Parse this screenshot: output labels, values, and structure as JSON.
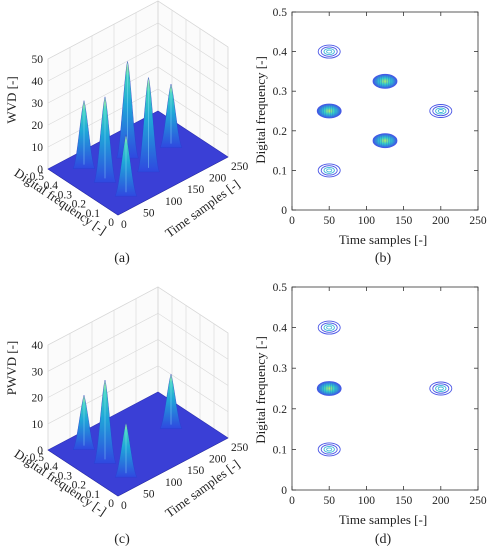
{
  "colors": {
    "floor": "#3a3fd6",
    "peak_low": "#2f48e0",
    "peak_mid": "#1fb4d8",
    "peak_high": "#b8f06a",
    "contour_outer": "#4a56e6",
    "contour_mid": "#3fb7d8",
    "contour_core": "#98e27a",
    "axis": "#333333",
    "grid": "#d8d8d8"
  },
  "chart_data": [
    {
      "id": "a",
      "panel_label": "(a)",
      "type": "surface3d",
      "zlabel": "WVD [-]",
      "xlabel": "Time samples [-]",
      "ylabel": "Digital frequency [-]",
      "xlim": [
        0,
        250
      ],
      "ylim": [
        0,
        0.5
      ],
      "zlim": [
        0,
        50
      ],
      "xticks": [
        "0",
        "50",
        "100",
        "150",
        "200",
        "250"
      ],
      "yticks": [
        "0",
        "0.1",
        "0.2",
        "0.3",
        "0.4",
        "0.5"
      ],
      "zticks": [
        "0",
        "10",
        "20",
        "30",
        "40",
        "50"
      ],
      "peaks": [
        {
          "t": 50,
          "f": 0.4,
          "z": 30
        },
        {
          "t": 125,
          "f": 0.325,
          "z": 43
        },
        {
          "t": 200,
          "f": 0.25,
          "z": 28
        },
        {
          "t": 50,
          "f": 0.25,
          "z": 38
        },
        {
          "t": 125,
          "f": 0.175,
          "z": 42
        },
        {
          "t": 50,
          "f": 0.1,
          "z": 27
        }
      ]
    },
    {
      "id": "b",
      "panel_label": "(b)",
      "type": "contour",
      "xlabel": "Time samples [-]",
      "ylabel": "Digital frequency [-]",
      "xlim": [
        0,
        250
      ],
      "ylim": [
        0,
        0.5
      ],
      "xticks": [
        "0",
        "50",
        "100",
        "150",
        "200",
        "250"
      ],
      "yticks": [
        "0",
        "0.1",
        "0.2",
        "0.3",
        "0.4",
        "0.5"
      ],
      "blobs": [
        {
          "t": 50,
          "f": 0.4,
          "strength": 0.55
        },
        {
          "t": 125,
          "f": 0.325,
          "strength": 1.0
        },
        {
          "t": 200,
          "f": 0.25,
          "strength": 0.55
        },
        {
          "t": 50,
          "f": 0.25,
          "strength": 1.0
        },
        {
          "t": 125,
          "f": 0.175,
          "strength": 1.0
        },
        {
          "t": 50,
          "f": 0.1,
          "strength": 0.55
        }
      ]
    },
    {
      "id": "c",
      "panel_label": "(c)",
      "type": "surface3d",
      "zlabel": "PWVD [-]",
      "xlabel": "Time samples [-]",
      "ylabel": "Digital frequency [-]",
      "xlim": [
        0,
        250
      ],
      "ylim": [
        0,
        0.5
      ],
      "zlim": [
        0,
        40
      ],
      "xticks": [
        "0",
        "50",
        "100",
        "150",
        "200",
        "250"
      ],
      "yticks": [
        "0",
        "0.1",
        "0.2",
        "0.3",
        "0.4",
        "0.5"
      ],
      "zticks": [
        "0",
        "10",
        "20",
        "30",
        "40"
      ],
      "peaks": [
        {
          "t": 50,
          "f": 0.4,
          "z": 20
        },
        {
          "t": 200,
          "f": 0.25,
          "z": 20
        },
        {
          "t": 50,
          "f": 0.25,
          "z": 31
        },
        {
          "t": 50,
          "f": 0.1,
          "z": 20
        }
      ]
    },
    {
      "id": "d",
      "panel_label": "(d)",
      "type": "contour",
      "xlabel": "Time samples [-]",
      "ylabel": "Digital frequency [-]",
      "xlim": [
        0,
        250
      ],
      "ylim": [
        0,
        0.5
      ],
      "xticks": [
        "0",
        "50",
        "100",
        "150",
        "200",
        "250"
      ],
      "yticks": [
        "0",
        "0.1",
        "0.2",
        "0.3",
        "0.4",
        "0.5"
      ],
      "blobs": [
        {
          "t": 50,
          "f": 0.4,
          "strength": 0.55
        },
        {
          "t": 50,
          "f": 0.25,
          "strength": 1.0
        },
        {
          "t": 200,
          "f": 0.25,
          "strength": 0.55
        },
        {
          "t": 50,
          "f": 0.1,
          "strength": 0.55
        }
      ]
    }
  ]
}
